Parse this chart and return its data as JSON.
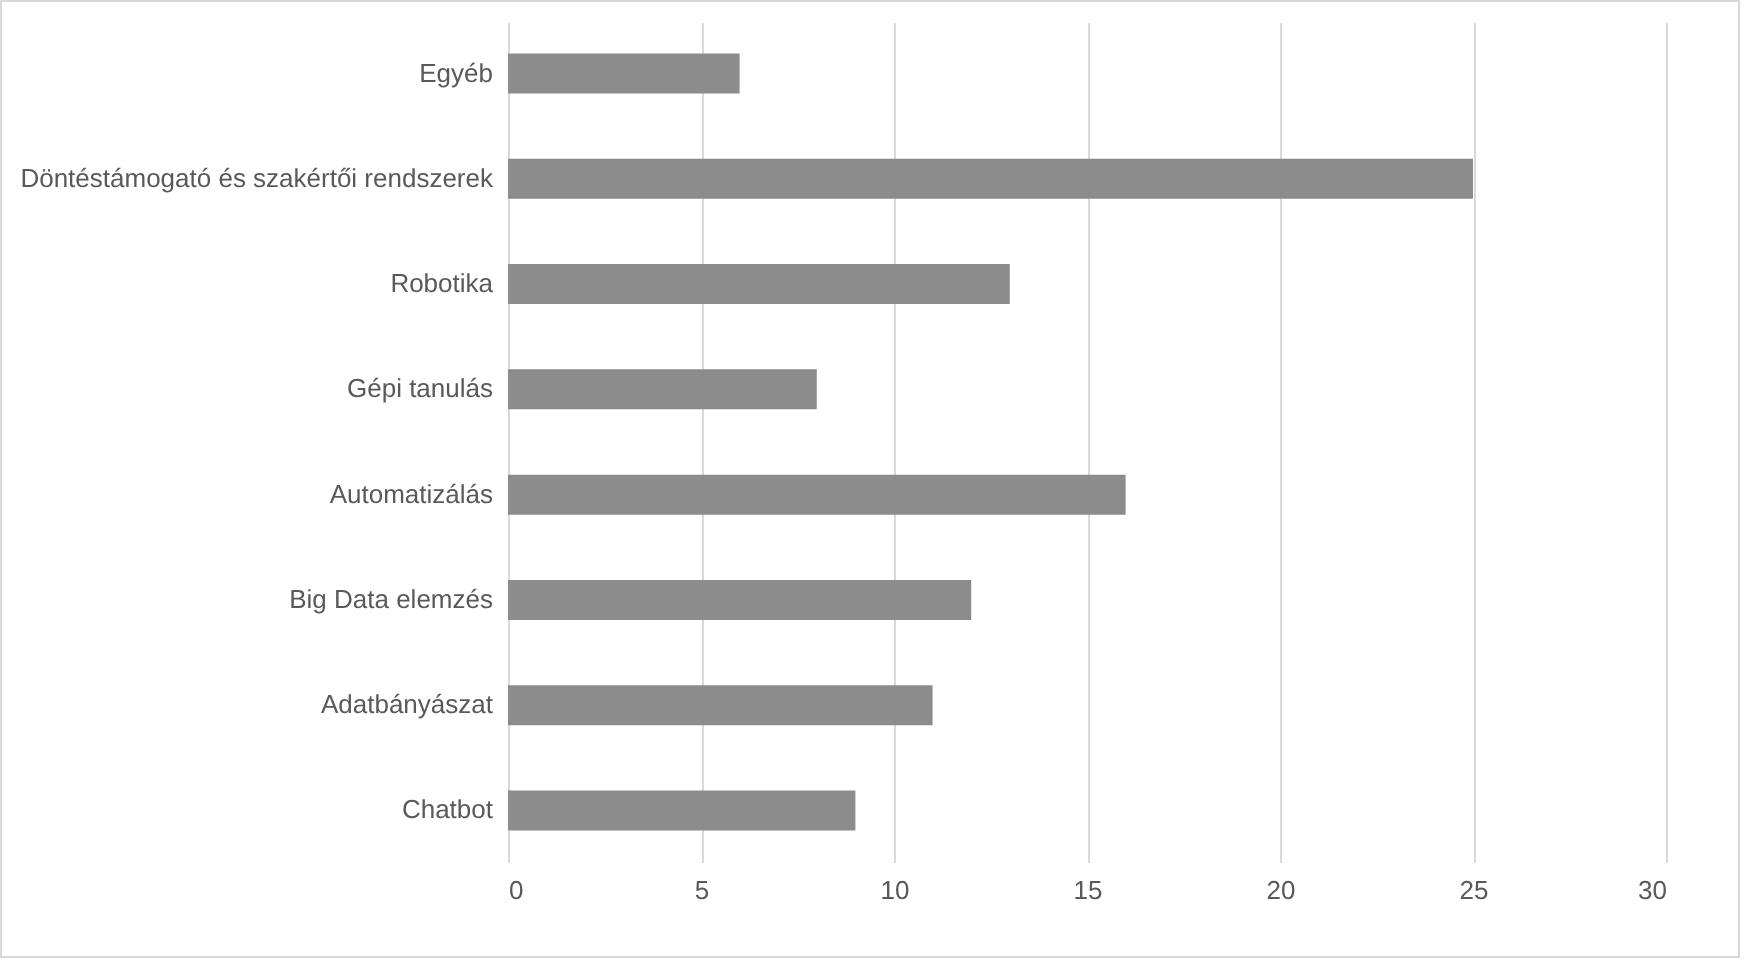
{
  "chart_data": {
    "type": "bar",
    "orientation": "horizontal",
    "categories": [
      "Egyéb",
      "Döntéstámogató és szakértői rendszerek",
      "Robotika",
      "Gépi tanulás",
      "Automatizálás",
      "Big Data elemzés",
      "Adatbányászat",
      "Chatbot"
    ],
    "values": [
      6,
      25,
      13,
      8,
      16,
      12,
      11,
      9
    ],
    "color": "#8c8c8c",
    "xlim": [
      0,
      30
    ],
    "xticks": [
      0,
      5,
      10,
      15,
      20,
      25,
      30
    ],
    "grid": "x"
  }
}
